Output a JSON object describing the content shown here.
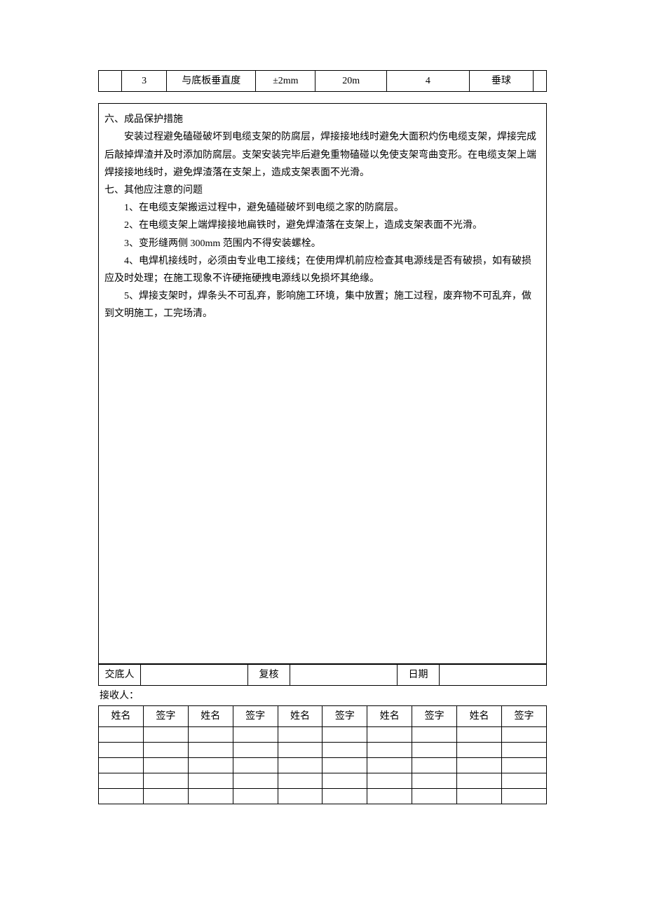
{
  "top_table": {
    "row": {
      "num": "3",
      "item": "与底板垂直度",
      "tolerance": "±2mm",
      "distance": "20m",
      "count": "4",
      "method": "垂球"
    }
  },
  "body": {
    "section6_title": "六、成品保护措施",
    "section6_para": "安装过程避免磕碰破坏到电缆支架的防腐层，焊接接地线时避免大面积灼伤电缆支架，焊接完成后敲掉焊渣并及时添加防腐层。支架安装完毕后避免重物磕碰以免使支架弯曲变形。在电缆支架上端焊接接地线时，避免焊渣落在支架上，造成支架表面不光滑。",
    "section7_title": "七、其他应注意的问题",
    "item1": "1、在电缆支架搬运过程中，避免磕碰破坏到电缆之家的防腐层。",
    "item2": "2、在电缆支架上端焊接接地扁铁时，避免焊渣落在支架上，造成支架表面不光滑。",
    "item3": "3、变形缝两侧 300mm 范围内不得安装螺栓。",
    "item4": "4、电焊机接线时，必须由专业电工接线；在使用焊机前应检查其电源线是否有破损，如有破损应及时处理；在施工现象不许硬拖硬拽电源线以免损坏其绝缘。",
    "item5": "5、焊接支架时，焊条头不可乱弃，影响施工环境，集中放置；施工过程，废弃物不可乱弃，做到文明施工，工完场清。"
  },
  "footer": {
    "jiaodi": "交底人",
    "fuhe": "复核",
    "riqi": "日期",
    "jieshouren": "接收人：",
    "xingming": "姓名",
    "qianzi": "签字"
  }
}
